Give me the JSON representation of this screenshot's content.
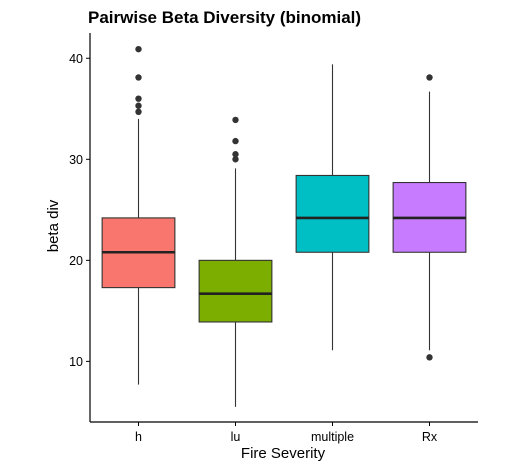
{
  "chart_data": {
    "type": "boxplot",
    "title": "Pairwise Beta Diversity (binomial)",
    "xlabel": "Fire Severity",
    "ylabel": "beta div",
    "categories": [
      "h",
      "lu",
      "multiple",
      "Rx"
    ],
    "ylim": [
      4,
      42.5
    ],
    "yticks": [
      10,
      20,
      30,
      40
    ],
    "grid": false,
    "boxes": [
      {
        "category": "h",
        "color": "#F8766D",
        "whisker_low": 7.7,
        "q1": 17.3,
        "median": 20.8,
        "q3": 24.2,
        "whisker_high": 34.0,
        "outliers": [
          34.7,
          35.3,
          36.0,
          38.1,
          40.9
        ]
      },
      {
        "category": "lu",
        "color": "#7CAE00",
        "whisker_low": 5.5,
        "q1": 13.9,
        "median": 16.7,
        "q3": 20.0,
        "whisker_high": 29.1,
        "outliers": [
          30.0,
          30.5,
          31.8,
          33.9
        ]
      },
      {
        "category": "multiple",
        "color": "#00BFC4",
        "whisker_low": 11.1,
        "q1": 20.8,
        "median": 24.2,
        "q3": 28.4,
        "whisker_high": 39.4,
        "outliers": []
      },
      {
        "category": "Rx",
        "color": "#C77CFF",
        "whisker_low": 11.1,
        "q1": 20.8,
        "median": 24.2,
        "q3": 27.7,
        "whisker_high": 36.7,
        "outliers": [
          10.4,
          38.1
        ]
      }
    ]
  }
}
